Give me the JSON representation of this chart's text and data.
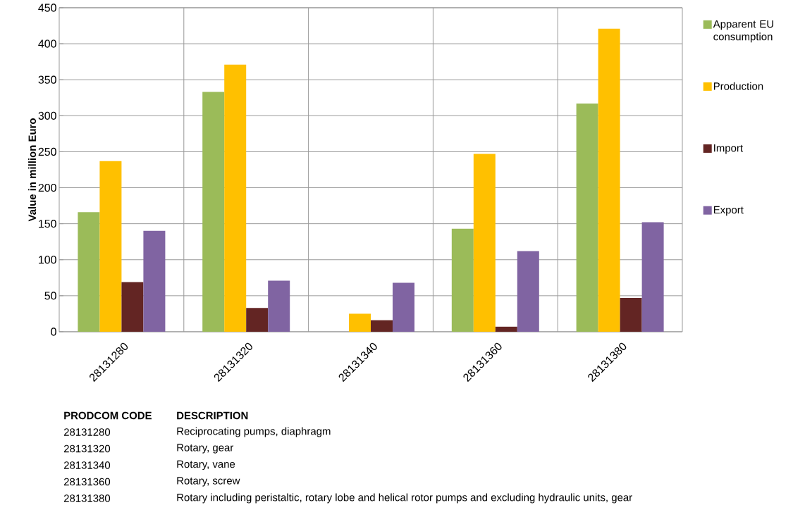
{
  "chart_data": {
    "type": "bar",
    "ylabel": "Value in million Euro",
    "categories": [
      "28131280",
      "28131320",
      "28131340",
      "28131360",
      "28131380"
    ],
    "series": [
      {
        "name": "Apparent EU consumption",
        "color": "#9bbb59",
        "values": [
          166,
          333,
          null,
          143,
          317
        ]
      },
      {
        "name": "Production",
        "color": "#ffc000",
        "values": [
          237,
          371,
          25,
          247,
          421
        ]
      },
      {
        "name": "Import",
        "color": "#632523",
        "values": [
          69,
          33,
          16,
          7,
          47
        ]
      },
      {
        "name": "Export",
        "color": "#8064a2",
        "values": [
          140,
          71,
          68,
          112,
          152
        ]
      }
    ],
    "ylim": [
      0,
      450
    ],
    "yticks": [
      0,
      50,
      100,
      150,
      200,
      250,
      300,
      350,
      400,
      450
    ],
    "grid": true,
    "legend": "right",
    "annotations": [
      "PRODCOM CODE",
      "DESCRIPTION",
      "28131280",
      "Reciprocating pumps, diaphragm",
      "28131320",
      "Rotary, gear",
      "28131340",
      "Rotary, vane",
      "28131360",
      "Rotary, screw",
      "28131380",
      "Rotary including peristaltic, rotary lobe and helical rotor pumps and excluding hydraulic units, gear"
    ]
  }
}
